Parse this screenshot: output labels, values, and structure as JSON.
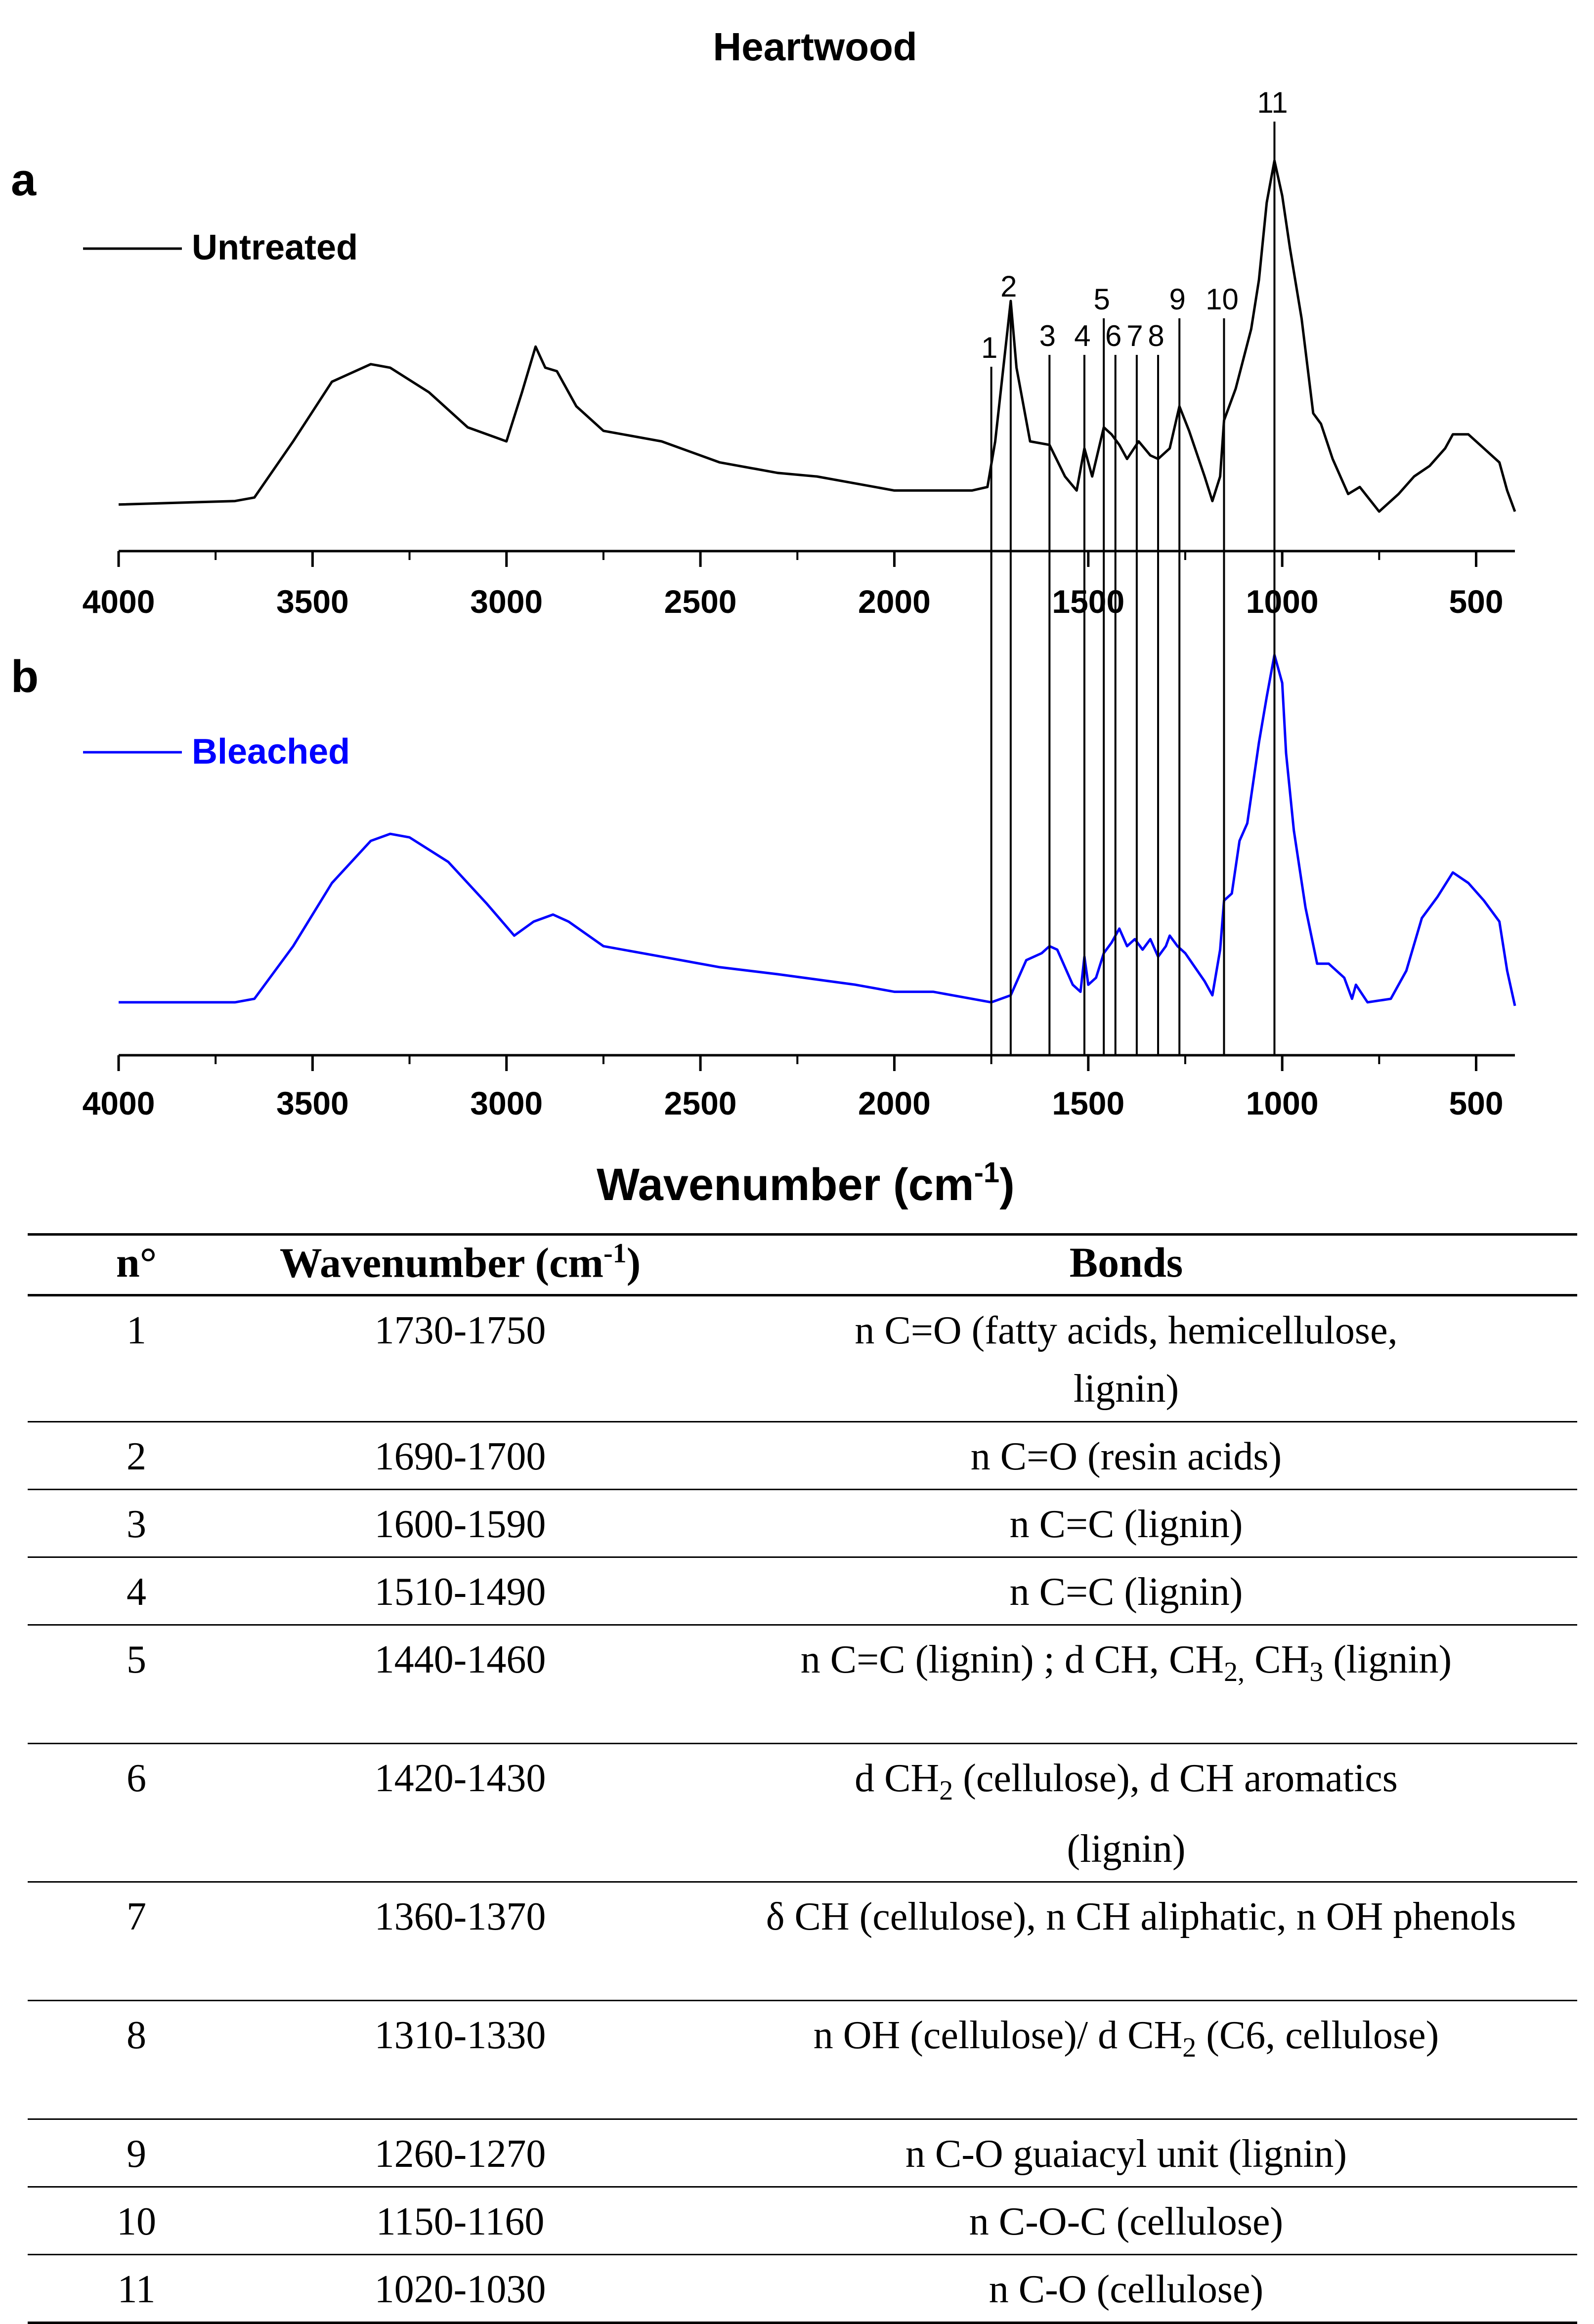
{
  "title": "Heartwood",
  "panels": [
    {
      "letter": "a",
      "legend": "Untreated",
      "color": "#000000"
    },
    {
      "letter": "b",
      "legend": "Bleached",
      "color": "#0000ff"
    }
  ],
  "x_axis_label": "Wavenumber (cm",
  "x_axis_label_sup": "-1",
  "x_axis_label_end": ")",
  "peak_labels": [
    "1",
    "2",
    "3",
    "4",
    "5",
    "6",
    "7",
    "8",
    "9",
    "10",
    "11"
  ],
  "chart_data": [
    {
      "type": "line",
      "panel": "a",
      "title": "Heartwood",
      "series_name": "Untreated",
      "color": "#000000",
      "xlabel": "Wavenumber (cm-1)",
      "xlim": [
        4000,
        400
      ],
      "xticks": [
        4000,
        3500,
        3000,
        2500,
        2000,
        1500,
        1000,
        500
      ],
      "ylim": [
        0,
        1
      ],
      "x": [
        4000,
        3700,
        3650,
        3550,
        3450,
        3350,
        3300,
        3200,
        3100,
        3000,
        2960,
        2925,
        2900,
        2870,
        2820,
        2750,
        2600,
        2450,
        2300,
        2200,
        2100,
        2000,
        1900,
        1800,
        1760,
        1740,
        1715,
        1700,
        1685,
        1650,
        1600,
        1560,
        1530,
        1510,
        1490,
        1460,
        1440,
        1420,
        1400,
        1370,
        1340,
        1320,
        1290,
        1265,
        1240,
        1200,
        1180,
        1160,
        1150,
        1120,
        1080,
        1060,
        1040,
        1030,
        1020,
        1000,
        980,
        950,
        920,
        900,
        870,
        830,
        800,
        750,
        700,
        660,
        620,
        580,
        560,
        520,
        480,
        440,
        420,
        400
      ],
      "values": [
        0.02,
        0.03,
        0.04,
        0.2,
        0.37,
        0.42,
        0.41,
        0.34,
        0.24,
        0.2,
        0.34,
        0.47,
        0.41,
        0.4,
        0.3,
        0.23,
        0.2,
        0.14,
        0.11,
        0.1,
        0.08,
        0.06,
        0.06,
        0.06,
        0.07,
        0.2,
        0.45,
        0.6,
        0.41,
        0.2,
        0.19,
        0.1,
        0.06,
        0.18,
        0.1,
        0.24,
        0.22,
        0.19,
        0.15,
        0.2,
        0.16,
        0.15,
        0.18,
        0.3,
        0.23,
        0.1,
        0.03,
        0.1,
        0.26,
        0.35,
        0.52,
        0.66,
        0.88,
        0.94,
        1.0,
        0.9,
        0.75,
        0.55,
        0.28,
        0.25,
        0.15,
        0.05,
        0.07,
        0.0,
        0.05,
        0.1,
        0.13,
        0.18,
        0.22,
        0.22,
        0.18,
        0.14,
        0.06,
        0.0
      ]
    },
    {
      "type": "line",
      "panel": "b",
      "series_name": "Bleached",
      "color": "#0000ff",
      "xlabel": "Wavenumber (cm-1)",
      "xlim": [
        4000,
        400
      ],
      "xticks": [
        4000,
        3500,
        3000,
        2500,
        2000,
        1500,
        1000,
        500
      ],
      "ylim": [
        0,
        1
      ],
      "x": [
        4000,
        3700,
        3650,
        3550,
        3450,
        3350,
        3300,
        3250,
        3150,
        3050,
        2980,
        2930,
        2880,
        2840,
        2750,
        2600,
        2450,
        2300,
        2100,
        2000,
        1900,
        1800,
        1750,
        1700,
        1660,
        1620,
        1600,
        1580,
        1540,
        1520,
        1510,
        1500,
        1480,
        1460,
        1440,
        1420,
        1400,
        1380,
        1360,
        1340,
        1320,
        1300,
        1290,
        1270,
        1250,
        1200,
        1180,
        1160,
        1150,
        1130,
        1110,
        1090,
        1060,
        1040,
        1030,
        1020,
        1000,
        990,
        970,
        940,
        910,
        880,
        840,
        820,
        810,
        780,
        720,
        680,
        640,
        600,
        560,
        520,
        480,
        440,
        420,
        400
      ],
      "values": [
        0.01,
        0.01,
        0.02,
        0.17,
        0.35,
        0.47,
        0.49,
        0.48,
        0.41,
        0.29,
        0.2,
        0.24,
        0.26,
        0.24,
        0.17,
        0.14,
        0.11,
        0.09,
        0.06,
        0.04,
        0.04,
        0.02,
        0.01,
        0.03,
        0.13,
        0.15,
        0.17,
        0.16,
        0.06,
        0.04,
        0.14,
        0.06,
        0.08,
        0.15,
        0.18,
        0.22,
        0.17,
        0.19,
        0.16,
        0.19,
        0.14,
        0.17,
        0.2,
        0.17,
        0.15,
        0.07,
        0.03,
        0.16,
        0.3,
        0.32,
        0.47,
        0.52,
        0.75,
        0.88,
        0.94,
        1.0,
        0.92,
        0.72,
        0.5,
        0.28,
        0.12,
        0.12,
        0.08,
        0.02,
        0.06,
        0.01,
        0.02,
        0.1,
        0.25,
        0.31,
        0.38,
        0.35,
        0.3,
        0.24,
        0.1,
        0.0
      ]
    }
  ],
  "peak_lines_wavenumber": [
    1750,
    1700,
    1600,
    1510,
    1460,
    1430,
    1375,
    1320,
    1265,
    1150,
    1020
  ],
  "table": {
    "headers": {
      "n": "n°",
      "wavenumber": "Wavenumber (cm",
      "wavenumber_sup": "-1",
      "wavenumber_end": ")",
      "bonds": "Bonds"
    },
    "rows": [
      {
        "n": "1",
        "wavenumber": "1730-1750",
        "bonds": "n C=O (fatty acids, hemicellulose, lignin)"
      },
      {
        "n": "2",
        "wavenumber": "1690-1700",
        "bonds": "n C=O (resin acids)"
      },
      {
        "n": "3",
        "wavenumber": "1600-1590",
        "bonds": "n C=C (lignin)"
      },
      {
        "n": "4",
        "wavenumber": "1510-1490",
        "bonds": "n C=C (lignin)"
      },
      {
        "n": "5",
        "wavenumber": "1440-1460",
        "bonds_a": "n C=C (lignin) ; d CH, CH",
        "bonds_sub1": "2,",
        "bonds_b": " CH",
        "bonds_sub2": "3",
        "bonds_c": " (lignin)"
      },
      {
        "n": "6",
        "wavenumber": "1420-1430",
        "bonds_a": "d CH",
        "bonds_sub1": "2",
        "bonds_b": " (cellulose), d CH aromatics (lignin)"
      },
      {
        "n": "7",
        "wavenumber": "1360-1370",
        "bonds": "δ  CH (cellulose), n CH aliphatic,  n OH phenols"
      },
      {
        "n": "8",
        "wavenumber": "1310-1330",
        "bonds_a": "n OH (cellulose)/ d CH",
        "bonds_sub1": "2",
        "bonds_b": " (C6, cellulose)"
      },
      {
        "n": "9",
        "wavenumber": "1260-1270",
        "bonds": "n C-O guaiacyl unit (lignin)"
      },
      {
        "n": "10",
        "wavenumber": "1150-1160",
        "bonds": "n C-O-C (cellulose)"
      },
      {
        "n": "11",
        "wavenumber": "1020-1030",
        "bonds": "n C-O (cellulose)"
      }
    ]
  }
}
